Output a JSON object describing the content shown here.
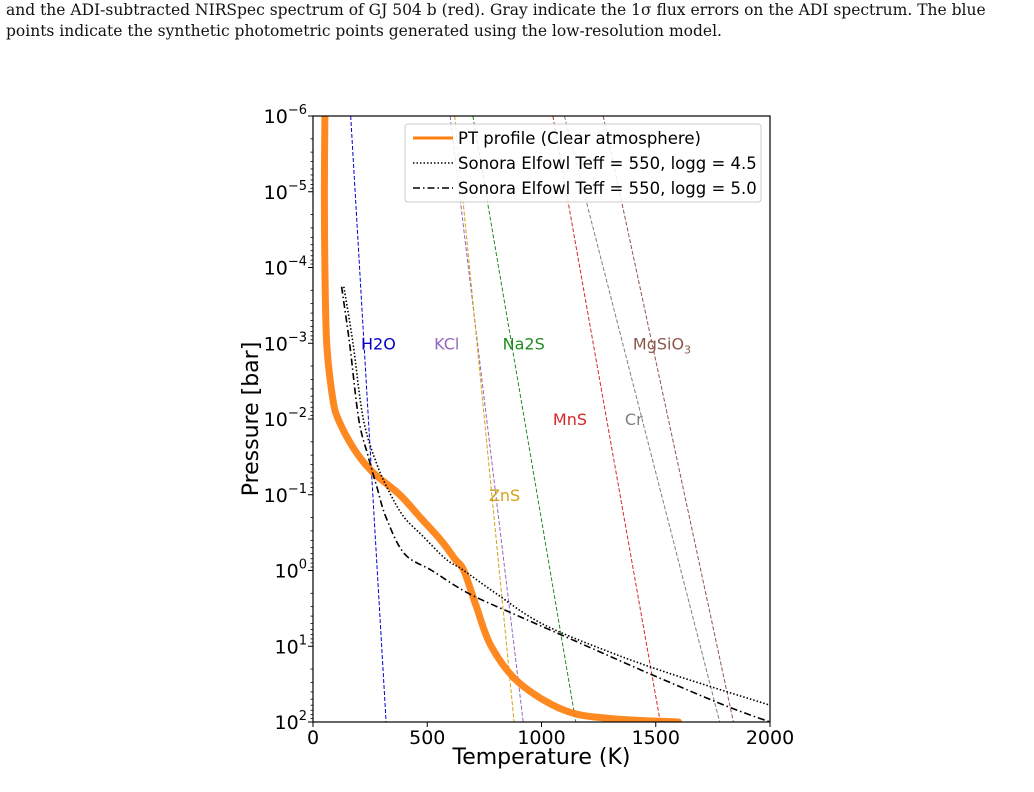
{
  "caption": {
    "line1": "and the ADI-subtracted NIRSpec spectrum of GJ 504 b (red). Gray indicate the 1σ flux errors on the ADI spectrum. The blue",
    "line2": "points indicate the synthetic photometric points generated using the low-resolution model."
  },
  "chart_data": {
    "type": "line",
    "title": "",
    "xlabel": "Temperature (K)",
    "ylabel": "Pressure [bar]",
    "xlim": [
      0,
      2000
    ],
    "ylim": [
      100,
      1e-06
    ],
    "yscale": "log",
    "grid": false,
    "legend_position": "top-right",
    "x_ticks": [
      {
        "value": 0,
        "label": "0"
      },
      {
        "value": 500,
        "label": "500"
      },
      {
        "value": 1000,
        "label": "1000"
      },
      {
        "value": 1500,
        "label": "1500"
      },
      {
        "value": 2000,
        "label": "2000"
      }
    ],
    "y_ticks": [
      {
        "value": 1e-06,
        "base": "10",
        "exp": "−6"
      },
      {
        "value": 1e-05,
        "base": "10",
        "exp": "−5"
      },
      {
        "value": 0.0001,
        "base": "10",
        "exp": "−4"
      },
      {
        "value": 0.001,
        "base": "10",
        "exp": "−3"
      },
      {
        "value": 0.01,
        "base": "10",
        "exp": "−2"
      },
      {
        "value": 0.1,
        "base": "10",
        "exp": "−1"
      },
      {
        "value": 1,
        "base": "10",
        "exp": "0"
      },
      {
        "value": 10,
        "base": "10",
        "exp": "1"
      },
      {
        "value": 100,
        "base": "10",
        "exp": "2"
      }
    ],
    "series": [
      {
        "name": "PT profile (Clear atmosphere)",
        "color": "#ff7f0e",
        "style": "solid",
        "points": [
          [
            52,
            1e-06
          ],
          [
            50,
            1e-05
          ],
          [
            52,
            0.0001
          ],
          [
            60,
            0.001
          ],
          [
            85,
            0.005
          ],
          [
            110,
            0.01
          ],
          [
            180,
            0.025
          ],
          [
            260,
            0.05
          ],
          [
            380,
            0.1
          ],
          [
            470,
            0.2
          ],
          [
            560,
            0.4
          ],
          [
            620,
            0.7
          ],
          [
            660,
            1
          ],
          [
            715,
            3
          ],
          [
            780,
            10
          ],
          [
            900,
            30
          ],
          [
            1100,
            70
          ],
          [
            1300,
            90
          ],
          [
            1600,
            100
          ]
        ]
      },
      {
        "name": "Sonora Elfowl Teff = 550, logg = 4.5",
        "color": "#000000",
        "style": "dotted",
        "points": [
          [
            135,
            0.00018
          ],
          [
            175,
            0.001
          ],
          [
            220,
            0.01
          ],
          [
            280,
            0.04
          ],
          [
            340,
            0.1
          ],
          [
            400,
            0.2
          ],
          [
            480,
            0.35
          ],
          [
            580,
            0.7
          ],
          [
            660,
            1
          ],
          [
            800,
            2
          ],
          [
            1000,
            5
          ],
          [
            1300,
            12
          ],
          [
            1600,
            25
          ],
          [
            2000,
            60
          ]
        ]
      },
      {
        "name": "Sonora Elfowl Teff = 550, logg = 5.0",
        "color": "#000000",
        "style": "dashdot",
        "points": [
          [
            125,
            0.00018
          ],
          [
            160,
            0.001
          ],
          [
            200,
            0.01
          ],
          [
            240,
            0.03
          ],
          [
            280,
            0.08
          ],
          [
            320,
            0.2
          ],
          [
            400,
            0.6
          ],
          [
            520,
            1
          ],
          [
            680,
            2
          ],
          [
            900,
            4
          ],
          [
            1200,
            10
          ],
          [
            1500,
            25
          ],
          [
            1800,
            60
          ],
          [
            2000,
            100
          ]
        ]
      }
    ],
    "condensation_curves": [
      {
        "name": "H2O",
        "color": "#0000cc",
        "points": [
          [
            165,
            1e-06
          ],
          [
            320,
            100
          ]
        ],
        "label_pos": [
          210,
          0.001
        ]
      },
      {
        "name": "KCl",
        "color": "#9467bd",
        "points": [
          [
            600,
            1e-06
          ],
          [
            920,
            100
          ]
        ],
        "label_pos": [
          530,
          0.001
        ]
      },
      {
        "name": "ZnS",
        "color": "#d4a017",
        "points": [
          [
            620,
            1e-06
          ],
          [
            880,
            100
          ]
        ],
        "label_pos": [
          770,
          0.1
        ]
      },
      {
        "name": "Na2S",
        "color": "#228b22",
        "points": [
          [
            700,
            1e-06
          ],
          [
            1150,
            100
          ]
        ],
        "label_pos": [
          830,
          0.001
        ]
      },
      {
        "name": "MnS",
        "color": "#d62728",
        "points": [
          [
            1050,
            1e-06
          ],
          [
            1520,
            100
          ]
        ],
        "label_pos": [
          1050,
          0.01
        ]
      },
      {
        "name": "Cr",
        "color": "#7f7f7f",
        "points": [
          [
            1100,
            1e-06
          ],
          [
            1780,
            100
          ]
        ],
        "label_pos": [
          1365,
          0.01
        ]
      },
      {
        "name": "MgSiO3",
        "color": "#8c564b",
        "points": [
          [
            1270,
            1e-06
          ],
          [
            1840,
            100
          ]
        ],
        "label_pos": [
          1400,
          0.001
        ]
      }
    ]
  }
}
